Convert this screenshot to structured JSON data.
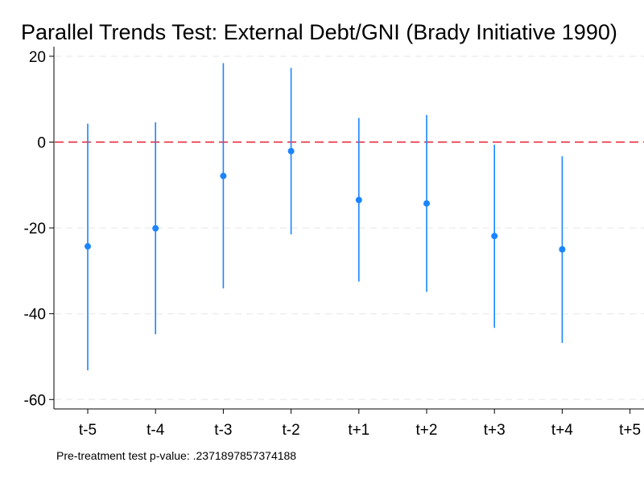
{
  "chart_data": {
    "type": "scatter",
    "title": "Parallel Trends Test: External Debt/GNI (Brady Initiative 1990)",
    "xlabel": "",
    "ylabel": "",
    "categories": [
      "t-5",
      "t-4",
      "t-3",
      "t-2",
      "t+1",
      "t+2",
      "t+3",
      "t+4",
      "t+5"
    ],
    "ylim": [
      -62,
      22
    ],
    "yticks": [
      20,
      0,
      -20,
      -40,
      -60
    ],
    "reference_line": 0,
    "grid": true,
    "series": [
      {
        "points": [
          {
            "x": "t-5",
            "y": -24.3,
            "lo": -53.2,
            "hi": 4.3
          },
          {
            "x": "t-4",
            "y": -20.1,
            "lo": -44.8,
            "hi": 4.6
          },
          {
            "x": "t-3",
            "y": -7.9,
            "lo": -34.1,
            "hi": 18.4
          },
          {
            "x": "t-2",
            "y": -2.1,
            "lo": -21.5,
            "hi": 17.3
          },
          {
            "x": "t+1",
            "y": -13.5,
            "lo": -32.5,
            "hi": 5.6
          },
          {
            "x": "t+2",
            "y": -14.3,
            "lo": -34.9,
            "hi": 6.3
          },
          {
            "x": "t+3",
            "y": -21.9,
            "lo": -43.3,
            "hi": -0.6
          },
          {
            "x": "t+4",
            "y": -25.0,
            "lo": -46.8,
            "hi": -3.3
          }
        ]
      }
    ],
    "note": "Pre-treatment test p-value: .2371897857374188",
    "colors": {
      "marker": "#1a85ff",
      "reference": "#e8192c",
      "grid": "#eeeeee",
      "axis": "#000000"
    }
  }
}
